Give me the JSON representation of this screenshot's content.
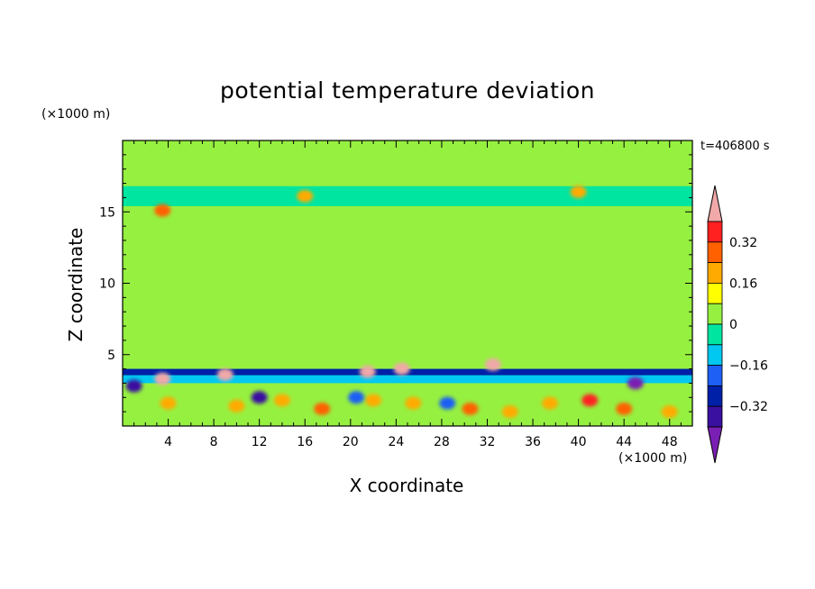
{
  "chart_data": {
    "type": "heatmap",
    "title": "potential temperature deviation",
    "xlabel": "X coordinate",
    "ylabel": "Z coordinate",
    "x_unit": "(×1000 m)",
    "y_unit": "(×1000 m)",
    "time_label": "t=406800 s",
    "xlim": [
      0,
      50
    ],
    "ylim": [
      0,
      20
    ],
    "x_ticks": [
      4,
      8,
      12,
      16,
      20,
      24,
      28,
      32,
      36,
      40,
      44,
      48
    ],
    "y_ticks": [
      5,
      10,
      15
    ],
    "colorbar": {
      "levels": [
        -0.48,
        -0.4,
        -0.32,
        -0.24,
        -0.16,
        -0.08,
        0,
        0.08,
        0.16,
        0.24,
        0.32,
        0.4
      ],
      "labels": [
        "0.32",
        "0.16",
        "0",
        "−0.16",
        "−0.32"
      ],
      "label_values": [
        0.32,
        0.16,
        0,
        -0.16,
        -0.32
      ],
      "colors": [
        "#7a1fb3",
        "#3a10a0",
        "#0020a8",
        "#1e5ff5",
        "#00c8f0",
        "#00e6a0",
        "#96f040",
        "#ffff00",
        "#ffaa00",
        "#ff6000",
        "#ff2020",
        "#f0a8a8"
      ]
    },
    "regions": [
      {
        "x": [
          0,
          50
        ],
        "z": [
          0,
          20
        ],
        "value": 0.04
      },
      {
        "x": [
          0,
          50
        ],
        "z": [
          0,
          4.0
        ],
        "value": -0.04
      },
      {
        "x": [
          0,
          50
        ],
        "z": [
          3.55,
          4.0
        ],
        "value": -0.3
      },
      {
        "x": [
          0,
          50
        ],
        "z": [
          3.0,
          3.55
        ],
        "value": -0.12
      },
      {
        "x": [
          0,
          50
        ],
        "z": [
          0,
          3.0
        ],
        "value": 0.04
      },
      {
        "x": [
          1,
          9.5
        ],
        "z": [
          5.2,
          14.0
        ],
        "value": 0.04
      },
      {
        "x": [
          30,
          42
        ],
        "z": [
          5.4,
          14.5
        ],
        "value": 0.04
      },
      {
        "x": [
          0,
          50
        ],
        "z": [
          15.4,
          16.8
        ],
        "value": -0.04
      },
      {
        "x": [
          0,
          50
        ],
        "z": [
          19.5,
          20
        ],
        "value": 0.04
      }
    ],
    "blobs": [
      {
        "x": 4.0,
        "z": 1.6,
        "value": 0.2
      },
      {
        "x": 10.0,
        "z": 1.4,
        "value": 0.16
      },
      {
        "x": 14.0,
        "z": 1.8,
        "value": 0.2
      },
      {
        "x": 17.5,
        "z": 1.2,
        "value": 0.3
      },
      {
        "x": 22.0,
        "z": 1.8,
        "value": 0.2
      },
      {
        "x": 25.5,
        "z": 1.6,
        "value": 0.2
      },
      {
        "x": 30.5,
        "z": 1.2,
        "value": 0.3
      },
      {
        "x": 34.0,
        "z": 1.0,
        "value": 0.16
      },
      {
        "x": 37.5,
        "z": 1.6,
        "value": 0.16
      },
      {
        "x": 41.0,
        "z": 1.8,
        "value": 0.32
      },
      {
        "x": 44.0,
        "z": 1.2,
        "value": 0.3
      },
      {
        "x": 48.0,
        "z": 1.0,
        "value": 0.2
      },
      {
        "x": 21.5,
        "z": 3.8,
        "value": 0.44
      },
      {
        "x": 24.5,
        "z": 4.0,
        "value": 0.44
      },
      {
        "x": 32.5,
        "z": 4.3,
        "value": 0.44
      },
      {
        "x": 9.0,
        "z": 3.6,
        "value": 0.44
      },
      {
        "x": 3.5,
        "z": 3.3,
        "value": 0.44
      },
      {
        "x": 3.5,
        "z": 15.1,
        "value": 0.3
      },
      {
        "x": 40.0,
        "z": 16.4,
        "value": 0.2
      },
      {
        "x": 16.0,
        "z": 16.1,
        "value": 0.16
      },
      {
        "x": 45.0,
        "z": 3.0,
        "value": -0.5
      },
      {
        "x": 1.0,
        "z": 2.8,
        "value": -0.4
      },
      {
        "x": 12.0,
        "z": 2.0,
        "value": -0.4
      },
      {
        "x": 20.5,
        "z": 2.0,
        "value": -0.24
      },
      {
        "x": 28.5,
        "z": 1.6,
        "value": -0.24
      }
    ]
  }
}
